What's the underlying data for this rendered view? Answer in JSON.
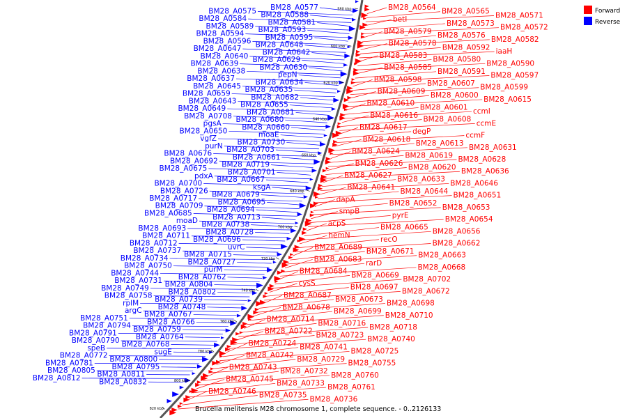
{
  "title": "Brucella melitensis M28 chromosome 1, complete sequence. - 0..2126133",
  "legend": [
    {
      "label": "Forward",
      "color": "#ff0000"
    },
    {
      "label": "Reverse",
      "color": "#0000ff"
    }
  ],
  "colors": {
    "forward": "#ff0000",
    "reverse": "#0000ff",
    "backbone": "#555555"
  },
  "ticks": [
    "580 kbp",
    "600 kbp",
    "620 kbp",
    "640 kbp",
    "660 kbp",
    "680 kbp",
    "700 kbp",
    "720 kbp",
    "740 kbp",
    "760 kbp",
    "780 kbp",
    "800 kbp",
    "820 kbp"
  ],
  "reverse_labels": [
    "BM28_A0577",
    "BM28_A0575",
    "BM28_A0588",
    "BM28_A0584",
    "BM28_A0581",
    "BM28_A0589",
    "BM28_A0593",
    "BM28_A0594",
    "BM28_A0595",
    "BM28_A0596",
    "BM28_A0648",
    "BM28_A0647",
    "BM28_A0642",
    "BM28_A0640",
    "BM28_A0629",
    "BM28_A0639",
    "BM28_A0630",
    "BM28_A0638",
    "pepN",
    "BM28_A0637",
    "BM28_A0634",
    "BM28_A0645",
    "BM28_A0635",
    "BM28_A0659",
    "BM28_A0682",
    "BM28_A0643",
    "BM28_A0655",
    "BM28_A0649",
    "BM28_A0681",
    "BM28_A0708",
    "BM28_A0680",
    "pgsA",
    "BM28_A0660",
    "BM28_A0650",
    "moaE",
    "vgfZ",
    "BM28_A0730",
    "purN",
    "BM28_A0703",
    "BM28_A0676",
    "BM28_A0661",
    "BM28_A0692",
    "BM28_A0719",
    "BM28_A0675",
    "BM28_A0701",
    "pdxA",
    "BM28_A0667",
    "BM28_A0700",
    "ksgA",
    "BM28_A0726",
    "BM28_A0679",
    "BM28_A0717",
    "BM28_A0695",
    "BM28_A0709",
    "BM28_A0694",
    "BM28_A0685",
    "BM28_A0713",
    "moaD",
    "BM28_A0738",
    "BM28_A0693",
    "BM28_A0728",
    "BM28_A0711",
    "BM28_A0696",
    "BM28_A0712",
    "uvrC",
    "BM28_A0737",
    "BM28_A0715",
    "BM28_A0734",
    "BM28_A0727",
    "BM28_A0750",
    "purM",
    "BM28_A0744",
    "BM28_A0762",
    "BM28_A0731",
    "BM28_A0804",
    "BM28_A0749",
    "BM28_A0802",
    "BM28_A0758",
    "BM28_A0739",
    "rplM",
    "BM28_A0748",
    "argC",
    "BM28_A0767",
    "BM28_A0751",
    "BM28_A0766",
    "BM28_A0794",
    "BM28_A0759",
    "BM28_A0791",
    "BM28_A0764",
    "BM28_A0790",
    "BM28_A0768",
    "speB",
    "sugE",
    "BM28_A0772",
    "BM28_A0800",
    "BM28_A0781",
    "BM28_A0795",
    "BM28_A0805",
    "BM28_A0811",
    "BM28_A0812",
    "BM28_A0832"
  ],
  "forward_labels": [
    "BM28_A0564",
    "BM28_A0565",
    "BM28_A0571",
    "betI",
    "BM28_A0573",
    "BM28_A0572",
    "BM28_A0579",
    "BM28_A0576",
    "BM28_A0582",
    "BM28_A0578",
    "BM28_A0592",
    "iaaH",
    "BM28_A0583",
    "BM28_A0580",
    "BM28_A0590",
    "BM28_A0585",
    "BM28_A0591",
    "BM28_A0597",
    "BM28_A0598",
    "BM28_A0607",
    "BM28_A0599",
    "BM28_A0609",
    "BM28_A0600",
    "BM28_A0615",
    "BM28_A0610",
    "BM28_A0601",
    "ccmI",
    "BM28_A0616",
    "BM28_A0608",
    "ccmE",
    "BM28_A0617",
    "degP",
    "ccmF",
    "BM28_A0618",
    "BM28_A0613",
    "BM28_A0631",
    "BM28_A0624",
    "BM28_A0619",
    "BM28_A0628",
    "BM28_A0626",
    "BM28_A0620",
    "BM28_A0636",
    "BM28_A0627",
    "BM28_A0633",
    "BM28_A0646",
    "BM28_A0641",
    "BM28_A0644",
    "BM28_A0651",
    "dapA",
    "BM28_A0652",
    "BM28_A0653",
    "smpB",
    "pyrE",
    "BM28_A0654",
    "acpS",
    "BM28_A0665",
    "BM28_A0656",
    "hemN",
    "recO",
    "BM28_A0662",
    "BM28_A0689",
    "BM28_A0671",
    "BM28_A0663",
    "BM28_A0683",
    "rarD",
    "BM28_A0668",
    "BM28_A0684",
    "BM28_A0669",
    "BM28_A0702",
    "cysS",
    "BM28_A0697",
    "BM28_A0672",
    "BM28_A0687",
    "BM28_A0673",
    "BM28_A0698",
    "BM28_A0678",
    "BM28_A0699",
    "BM28_A0710",
    "BM28_A0714",
    "BM28_A0716",
    "BM28_A0718",
    "BM28_A0722",
    "BM28_A0723",
    "BM28_A0740",
    "BM28_A0724",
    "BM28_A0741",
    "BM28_A0725",
    "BM28_A0742",
    "BM28_A0729",
    "BM28_A0755",
    "BM28_A0743",
    "BM28_A0732",
    "BM28_A0760",
    "BM28_A0745",
    "BM28_A0733",
    "BM28_A0761",
    "BM28_A0746",
    "BM28_A0735",
    "BM28_A0736"
  ]
}
